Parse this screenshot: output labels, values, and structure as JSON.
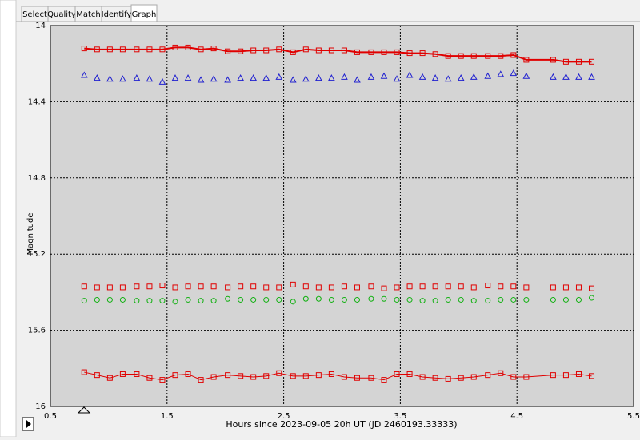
{
  "tabs": [
    "Select",
    "Quality",
    "Match",
    "Identify",
    "Graph"
  ],
  "chart_data": {
    "type": "scatter",
    "x_label": "Hours since 2023-09-05 20h UT (JD 2460193.33333)",
    "y_label": "Magnitude",
    "xlim": [
      0.5,
      5.5
    ],
    "xticks": [
      0.5,
      1.5,
      2.5,
      3.5,
      4.5,
      5.5
    ],
    "ylim": [
      16,
      14
    ],
    "yticks": [
      14,
      14.4,
      14.8,
      15.2,
      15.6,
      16
    ],
    "grid": true,
    "x": [
      0.79,
      0.9,
      1.01,
      1.12,
      1.24,
      1.35,
      1.46,
      1.57,
      1.68,
      1.79,
      1.9,
      2.02,
      2.13,
      2.24,
      2.35,
      2.46,
      2.58,
      2.69,
      2.8,
      2.91,
      3.02,
      3.13,
      3.25,
      3.36,
      3.47,
      3.58,
      3.69,
      3.8,
      3.91,
      4.02,
      4.13,
      4.25,
      4.36,
      4.47,
      4.58,
      4.81,
      4.92,
      5.03,
      5.14
    ],
    "series": [
      {
        "color": "#e00000",
        "marker": "square",
        "line": true,
        "line_width": 2,
        "values": [
          14.12,
          14.125,
          14.125,
          14.125,
          14.125,
          14.125,
          14.125,
          14.115,
          14.115,
          14.125,
          14.12,
          14.135,
          14.135,
          14.13,
          14.13,
          14.125,
          14.14,
          14.125,
          14.13,
          14.13,
          14.13,
          14.14,
          14.14,
          14.14,
          14.14,
          14.145,
          14.145,
          14.15,
          14.16,
          14.16,
          14.16,
          14.16,
          14.16,
          14.155,
          14.18,
          14.18,
          14.19,
          14.19,
          14.19
        ]
      },
      {
        "color": "#2020d0",
        "marker": "triangle",
        "line": false,
        "values": [
          14.26,
          14.275,
          14.28,
          14.28,
          14.275,
          14.28,
          14.295,
          14.275,
          14.275,
          14.285,
          14.28,
          14.285,
          14.275,
          14.275,
          14.275,
          14.27,
          14.285,
          14.28,
          14.275,
          14.275,
          14.27,
          14.285,
          14.27,
          14.265,
          14.28,
          14.26,
          14.27,
          14.275,
          14.28,
          14.275,
          14.27,
          14.265,
          14.255,
          14.25,
          14.265,
          14.27,
          14.27,
          14.27,
          14.27
        ]
      },
      {
        "color": "#e00000",
        "marker": "square",
        "line": false,
        "values": [
          15.37,
          15.375,
          15.375,
          15.375,
          15.37,
          15.37,
          15.365,
          15.375,
          15.37,
          15.37,
          15.37,
          15.375,
          15.37,
          15.37,
          15.375,
          15.375,
          15.36,
          15.37,
          15.375,
          15.375,
          15.37,
          15.375,
          15.37,
          15.38,
          15.375,
          15.37,
          15.37,
          15.37,
          15.37,
          15.37,
          15.375,
          15.365,
          15.37,
          15.37,
          15.375,
          15.375,
          15.375,
          15.375,
          15.38
        ]
      },
      {
        "color": "#10b010",
        "marker": "circle",
        "line": false,
        "values": [
          15.445,
          15.44,
          15.44,
          15.44,
          15.445,
          15.445,
          15.445,
          15.45,
          15.44,
          15.445,
          15.445,
          15.435,
          15.44,
          15.44,
          15.44,
          15.44,
          15.45,
          15.435,
          15.435,
          15.44,
          15.44,
          15.44,
          15.435,
          15.435,
          15.44,
          15.44,
          15.445,
          15.445,
          15.44,
          15.44,
          15.445,
          15.445,
          15.44,
          15.44,
          15.44,
          15.44,
          15.44,
          15.44,
          15.43
        ]
      },
      {
        "color": "#e00000",
        "marker": "square",
        "line": true,
        "line_width": 1,
        "values": [
          15.82,
          15.835,
          15.85,
          15.83,
          15.83,
          15.85,
          15.86,
          15.835,
          15.83,
          15.86,
          15.845,
          15.835,
          15.84,
          15.845,
          15.84,
          15.825,
          15.84,
          15.84,
          15.835,
          15.83,
          15.845,
          15.85,
          15.85,
          15.86,
          15.83,
          15.83,
          15.845,
          15.85,
          15.855,
          15.85,
          15.845,
          15.835,
          15.825,
          15.845,
          15.845,
          15.835,
          15.835,
          15.83,
          15.84
        ]
      }
    ]
  }
}
